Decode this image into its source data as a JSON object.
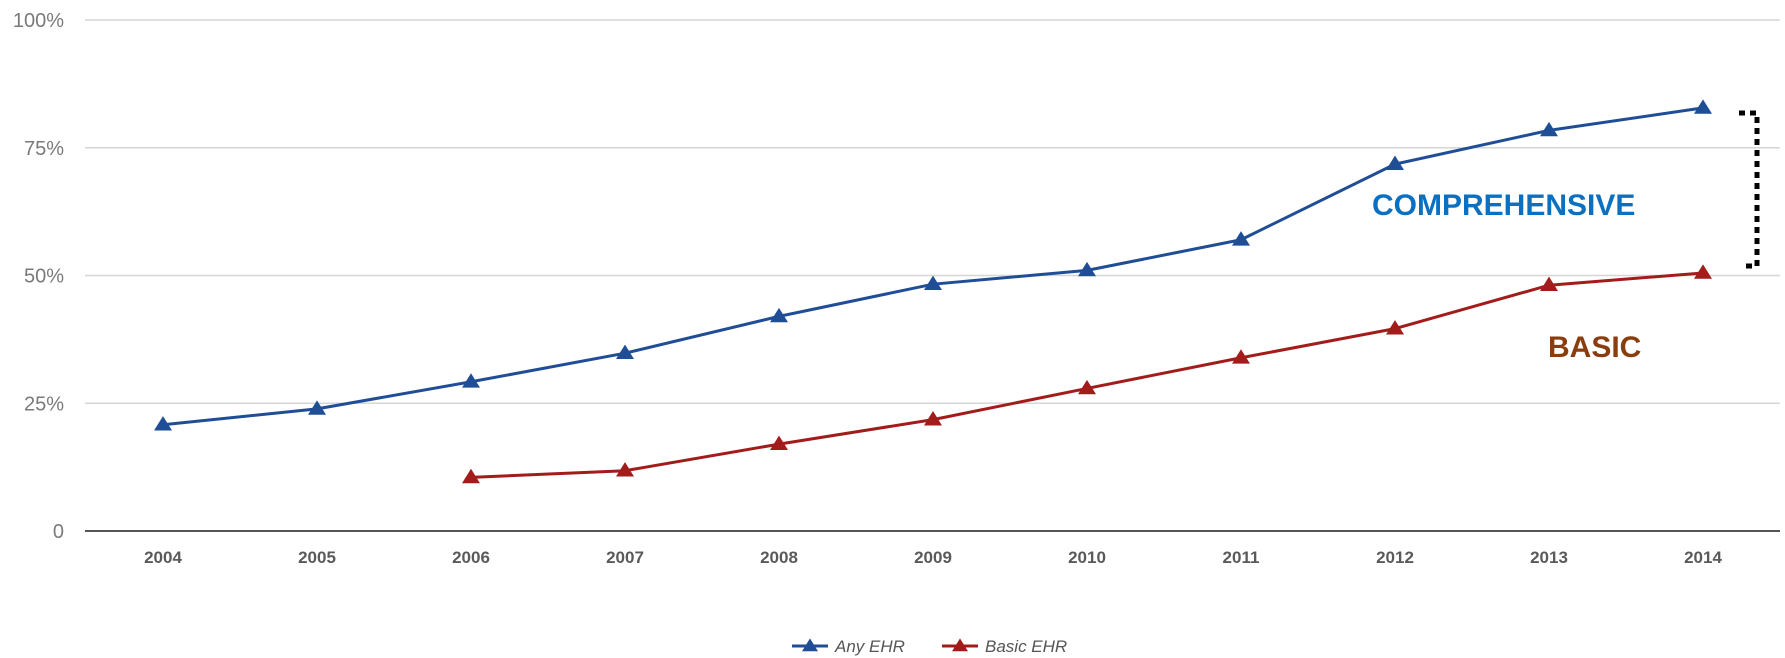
{
  "chart_data": {
    "type": "line",
    "x": [
      "2004",
      "2005",
      "2006",
      "2007",
      "2008",
      "2009",
      "2010",
      "2011",
      "2012",
      "2013",
      "2014"
    ],
    "ylim": [
      0,
      100
    ],
    "yticks": [
      0,
      25,
      50,
      75,
      100
    ],
    "ytick_labels": [
      "0",
      "25%",
      "50%",
      "75%",
      "100%"
    ],
    "grid": true,
    "legend_position": "bottom",
    "series": [
      {
        "name": "Any EHR",
        "color": "#1f4e96",
        "marker": "triangle",
        "values": [
          20.8,
          23.9,
          29.2,
          34.8,
          42.0,
          48.3,
          51.0,
          57.0,
          71.8,
          78.4,
          82.8
        ]
      },
      {
        "name": "Basic EHR",
        "color": "#a31c1c",
        "marker": "triangle",
        "values": [
          null,
          null,
          10.5,
          11.8,
          17.0,
          21.8,
          27.9,
          33.9,
          39.6,
          48.1,
          50.5
        ]
      }
    ],
    "annotations": [
      {
        "text": "COMPREHENSIVE",
        "color": "#0b70c0"
      },
      {
        "text": "BASIC",
        "color": "#8a3d0f"
      }
    ]
  }
}
